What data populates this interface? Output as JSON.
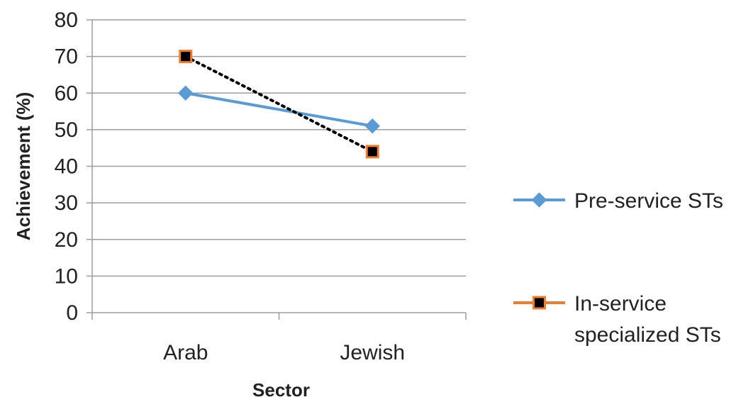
{
  "chart_data": {
    "type": "line",
    "title": "",
    "xlabel": "Sector",
    "ylabel": "Achievement (%)",
    "categories": [
      "Arab",
      "Jewish"
    ],
    "ylim": [
      0,
      80
    ],
    "yticks": [
      0,
      10,
      20,
      30,
      40,
      50,
      60,
      70,
      80
    ],
    "grid": true,
    "legend_position": "right",
    "series": [
      {
        "name": "Pre-service STs",
        "legend_lines": [
          "Pre-service STs"
        ],
        "values": [
          60,
          51
        ],
        "line_color": "#5b9bd5",
        "line_style": "solid",
        "marker": "diamond",
        "marker_fill": "#5b9bd5",
        "marker_edge": "#5b9bd5"
      },
      {
        "name": "In-service specialized STs",
        "legend_lines": [
          "In-service",
          "specialized STs"
        ],
        "values": [
          70,
          44
        ],
        "line_color": "#000000",
        "line_style": "dotted",
        "legend_line_color": "#ed7d31",
        "marker": "square",
        "marker_fill": "#000000",
        "marker_edge": "#ed7d31"
      }
    ]
  }
}
